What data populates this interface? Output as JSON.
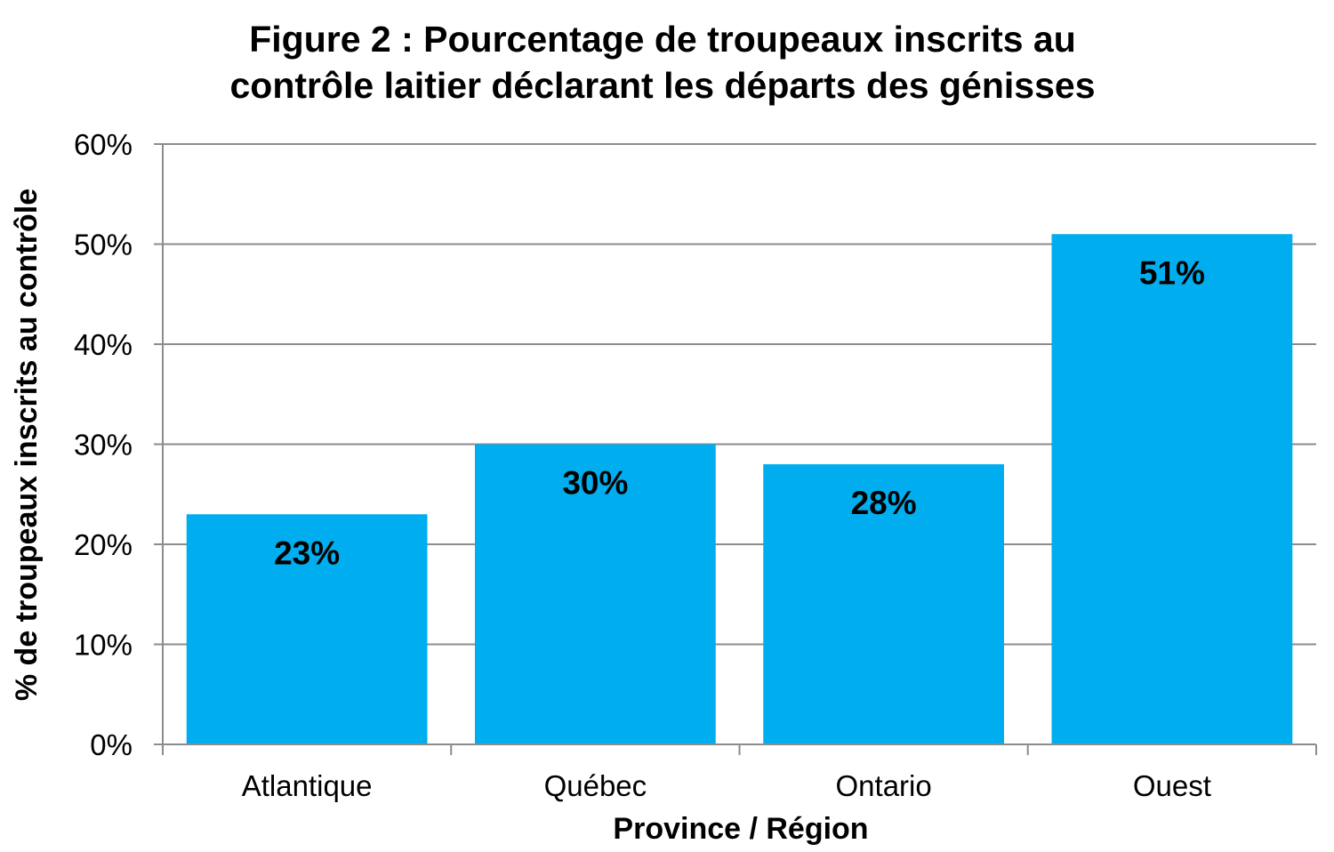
{
  "chart_data": {
    "type": "bar",
    "title_lines": [
      "Figure 2 : Pourcentage de troupeaux inscrits au",
      "contrôle laitier déclarant les départs des génisses"
    ],
    "categories": [
      "Atlantique",
      "Québec",
      "Ontario",
      "Ouest"
    ],
    "values": [
      23,
      30,
      28,
      51
    ],
    "data_labels": [
      "23%",
      "30%",
      "28%",
      "51%"
    ],
    "xlabel": "Province / Région",
    "ylabel": "% de troupeaux inscrits au contrôle",
    "ylim": [
      0,
      60
    ],
    "yticks": [
      0,
      10,
      20,
      30,
      40,
      50,
      60
    ],
    "ytick_labels": [
      "0%",
      "10%",
      "20%",
      "30%",
      "40%",
      "50%",
      "60%"
    ],
    "grid": true,
    "legend": "none",
    "colors": {
      "bar": "#00AEEF",
      "grid": "#8c8c8c",
      "axis": "#8c8c8c",
      "text": "#000000"
    }
  }
}
